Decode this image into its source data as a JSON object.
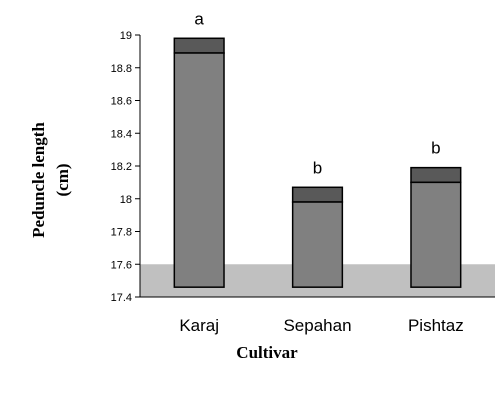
{
  "chart_data": {
    "type": "bar",
    "title": "",
    "xlabel": "Cultivar",
    "ylabel_lines": [
      "Peduncle length",
      "(cm)"
    ],
    "categories": [
      "Karaj",
      "Sepahan",
      "Pishtaz"
    ],
    "values": [
      18.89,
      17.98,
      18.1
    ],
    "error_upper": [
      18.98,
      18.07,
      18.19
    ],
    "significance": [
      "a",
      "b",
      "b"
    ],
    "ylim": [
      17.4,
      19.0
    ],
    "yticks": [
      "17.4",
      "17.6",
      "17.8",
      "18",
      "18.2",
      "18.4",
      "18.6",
      "18.8",
      "19"
    ],
    "bar_base": 17.46,
    "band": [
      17.4,
      17.6
    ],
    "grid": false,
    "colors": {
      "bar": "#808080",
      "cap": "#595959",
      "band": "#c0c0c0",
      "axis": "#000000"
    }
  }
}
